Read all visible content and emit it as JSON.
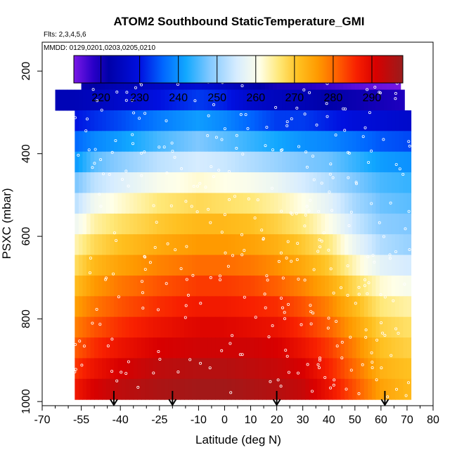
{
  "chart_data": {
    "type": "heatmap",
    "title": "ATOM2 Southbound StaticTemperature_GMI",
    "flights_label": "Flts: 2,3,4,5,6",
    "dates_label": "MMDD: 0129,0201,0203,0205,0210",
    "xlabel": "Latitude (deg N)",
    "ylabel": "PSXC (mbar)",
    "xlim": [
      -70,
      80
    ],
    "ylim": [
      1010,
      130
    ],
    "x_ticks": [
      -70,
      -55,
      -40,
      -25,
      -10,
      0,
      10,
      20,
      30,
      40,
      50,
      60,
      70,
      80
    ],
    "x_minor_ticks": [
      -65,
      -60,
      -50,
      -45,
      -35,
      -30,
      -20,
      -15,
      -5,
      5,
      15,
      25,
      35,
      45,
      55,
      65,
      75
    ],
    "y_ticks": [
      200,
      400,
      600,
      800,
      1000
    ],
    "colorbar": {
      "min": 213,
      "max": 298,
      "ticks": [
        220,
        230,
        240,
        250,
        260,
        270,
        280,
        290
      ],
      "stops": [
        {
          "v": 213,
          "c": "#7a18e6"
        },
        {
          "v": 218,
          "c": "#2a00c8"
        },
        {
          "v": 222,
          "c": "#0000a8"
        },
        {
          "v": 230,
          "c": "#0010e0"
        },
        {
          "v": 236,
          "c": "#0066ff"
        },
        {
          "v": 242,
          "c": "#12a8ff"
        },
        {
          "v": 248,
          "c": "#80c8ff"
        },
        {
          "v": 255,
          "c": "#d6ecff"
        },
        {
          "v": 261,
          "c": "#ffffe8"
        },
        {
          "v": 266,
          "c": "#ffe878"
        },
        {
          "v": 271,
          "c": "#ffc020"
        },
        {
          "v": 276,
          "c": "#ff9a00"
        },
        {
          "v": 281,
          "c": "#ff6000"
        },
        {
          "v": 286,
          "c": "#f82000"
        },
        {
          "v": 291,
          "c": "#d80000"
        },
        {
          "v": 298,
          "c": "#9a1c1c"
        }
      ]
    },
    "pressure_levels": [
      220,
      270,
      320,
      370,
      420,
      470,
      520,
      570,
      620,
      670,
      720,
      770,
      820,
      870,
      920,
      970
    ],
    "temperature_profile": [
      {
        "lat": -58,
        "t": [
          221,
          224,
          230,
          236,
          240,
          247,
          252,
          258,
          263,
          267,
          271,
          275,
          278,
          281,
          284,
          287
        ]
      },
      {
        "lat": -50,
        "t": [
          222,
          225,
          232,
          239,
          246,
          253,
          259,
          264,
          268,
          272,
          276,
          279,
          282,
          285,
          288,
          291
        ]
      },
      {
        "lat": -40,
        "t": [
          224,
          227,
          234,
          241,
          249,
          256,
          262,
          267,
          271,
          275,
          279,
          282,
          285,
          288,
          291,
          294
        ]
      },
      {
        "lat": -25,
        "t": [
          226,
          230,
          238,
          245,
          253,
          260,
          266,
          270,
          274,
          278,
          282,
          285,
          288,
          291,
          294,
          296
        ]
      },
      {
        "lat": -10,
        "t": [
          228,
          233,
          241,
          248,
          255,
          262,
          268,
          272,
          276,
          280,
          284,
          287,
          290,
          292,
          295,
          297
        ]
      },
      {
        "lat": 0,
        "t": [
          226,
          231,
          239,
          246,
          254,
          261,
          267,
          272,
          276,
          280,
          284,
          287,
          290,
          292,
          295,
          297
        ]
      },
      {
        "lat": 10,
        "t": [
          223,
          227,
          236,
          244,
          252,
          260,
          266,
          271,
          275,
          279,
          283,
          286,
          289,
          292,
          294,
          296
        ]
      },
      {
        "lat": 20,
        "t": [
          220,
          225,
          233,
          242,
          250,
          258,
          264,
          269,
          273,
          277,
          281,
          285,
          288,
          291,
          293,
          295
        ]
      },
      {
        "lat": 30,
        "t": [
          219,
          224,
          233,
          240,
          248,
          255,
          261,
          266,
          270,
          274,
          278,
          282,
          285,
          288,
          291,
          293
        ]
      },
      {
        "lat": 40,
        "t": [
          217,
          222,
          231,
          239,
          247,
          252,
          257,
          261,
          266,
          270,
          274,
          278,
          281,
          284,
          286,
          288
        ]
      },
      {
        "lat": 50,
        "t": [
          215,
          221,
          229,
          237,
          244,
          248,
          251,
          254,
          258,
          263,
          268,
          272,
          275,
          278,
          280,
          282
        ]
      },
      {
        "lat": 60,
        "t": [
          214,
          220,
          228,
          235,
          241,
          245,
          247,
          249,
          252,
          257,
          262,
          266,
          269,
          271,
          273,
          275
        ]
      },
      {
        "lat": 70,
        "t": [
          213,
          219,
          227,
          234,
          240,
          244,
          246,
          248,
          250,
          255,
          260,
          264,
          267,
          269,
          271,
          272
        ]
      }
    ],
    "lat_range": [
      -57.5,
      71.5
    ],
    "date_boundary_arrows_lat": [
      -42.5,
      -20,
      20,
      61.5
    ],
    "grid": false
  }
}
